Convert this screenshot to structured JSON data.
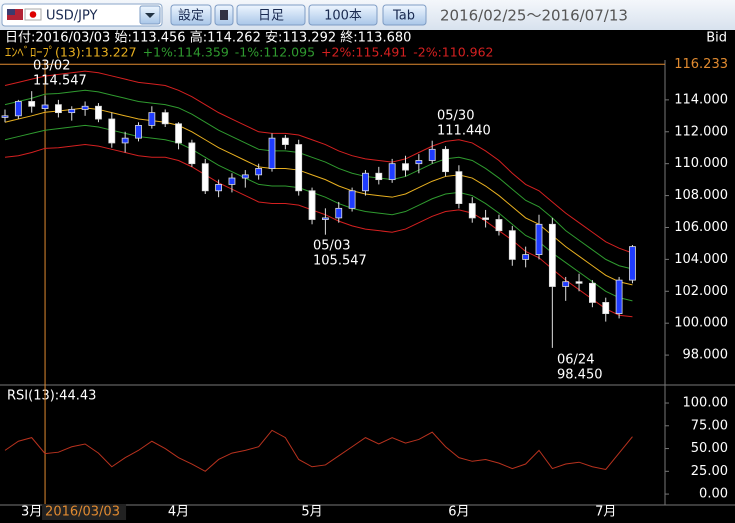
{
  "toolbar": {
    "pair": "USD/JPY",
    "buttons": [
      "設定",
      "日足",
      "100本",
      "Tab"
    ],
    "range": "2016/02/25～2016/07/13"
  },
  "chart_data": [
    {
      "type": "candlestick",
      "header": "日付:2016/03/03 始:113.456 高:114.262 安:113.292 終:113.680",
      "side_label": "Bid",
      "crosshair_label": "2016/03/03",
      "up_color": "#1f3cff",
      "down_color": "#ffffff",
      "categories": [
        null,
        null,
        "3月",
        null,
        null,
        null,
        null,
        null,
        null,
        null,
        null,
        null,
        null,
        "4月",
        null,
        null,
        null,
        null,
        null,
        null,
        null,
        null,
        null,
        "5月",
        null,
        null,
        null,
        null,
        null,
        null,
        null,
        null,
        null,
        null,
        "6月",
        null,
        null,
        null,
        null,
        null,
        null,
        null,
        null,
        null,
        null,
        "7月",
        null,
        null
      ],
      "ohlc": [
        [
          112.9,
          113.4,
          112.6,
          113.0
        ],
        [
          113.0,
          114.0,
          112.8,
          113.9
        ],
        [
          113.9,
          114.547,
          113.2,
          113.6
        ],
        [
          113.456,
          114.262,
          113.292,
          113.68
        ],
        [
          113.7,
          114.0,
          112.9,
          113.2
        ],
        [
          113.2,
          113.6,
          112.7,
          113.4
        ],
        [
          113.4,
          113.9,
          113.0,
          113.6
        ],
        [
          113.6,
          113.8,
          112.6,
          112.8
        ],
        [
          112.8,
          113.2,
          111.0,
          111.3
        ],
        [
          111.3,
          112.0,
          110.7,
          111.6
        ],
        [
          111.6,
          112.6,
          111.4,
          112.4
        ],
        [
          112.4,
          113.6,
          112.2,
          113.2
        ],
        [
          113.2,
          113.4,
          112.3,
          112.5
        ],
        [
          112.5,
          112.6,
          110.9,
          111.3
        ],
        [
          111.3,
          111.5,
          109.8,
          110.0
        ],
        [
          110.0,
          110.3,
          108.1,
          108.3
        ],
        [
          108.3,
          109.0,
          107.9,
          108.7
        ],
        [
          108.7,
          109.4,
          108.2,
          109.1
        ],
        [
          109.1,
          109.6,
          108.5,
          109.3
        ],
        [
          109.3,
          110.0,
          109.0,
          109.7
        ],
        [
          109.7,
          111.9,
          109.5,
          111.6
        ],
        [
          111.6,
          111.8,
          110.9,
          111.2
        ],
        [
          111.2,
          111.5,
          108.0,
          108.3
        ],
        [
          108.3,
          108.5,
          106.2,
          106.5
        ],
        [
          106.5,
          107.2,
          105.547,
          106.6
        ],
        [
          106.6,
          107.6,
          106.3,
          107.2
        ],
        [
          107.2,
          108.5,
          107.0,
          108.3
        ],
        [
          108.3,
          109.6,
          108.0,
          109.4
        ],
        [
          109.4,
          109.8,
          108.7,
          109.0
        ],
        [
          109.0,
          110.3,
          108.8,
          110.0
        ],
        [
          110.0,
          110.5,
          109.2,
          109.6
        ],
        [
          110.0,
          110.6,
          109.4,
          110.2
        ],
        [
          110.2,
          111.44,
          110.0,
          110.9
        ],
        [
          110.9,
          111.1,
          109.2,
          109.5
        ],
        [
          109.5,
          109.9,
          107.2,
          107.5
        ],
        [
          107.5,
          107.9,
          106.3,
          106.6
        ],
        [
          106.6,
          107.1,
          106.0,
          106.5
        ],
        [
          106.5,
          106.8,
          105.5,
          105.8
        ],
        [
          105.8,
          106.1,
          103.6,
          104.0
        ],
        [
          104.0,
          104.8,
          103.5,
          104.3
        ],
        [
          104.3,
          106.8,
          104.0,
          106.2
        ],
        [
          106.2,
          106.6,
          98.45,
          102.3
        ],
        [
          102.3,
          102.9,
          101.4,
          102.6
        ],
        [
          102.6,
          103.1,
          102.0,
          102.5
        ],
        [
          102.5,
          102.7,
          101.0,
          101.3
        ],
        [
          101.3,
          101.6,
          100.1,
          100.6
        ],
        [
          100.6,
          102.9,
          100.3,
          102.7
        ],
        [
          102.7,
          104.9,
          102.5,
          104.8
        ]
      ],
      "series": [
        {
          "name": "ｴﾝﾍﾞﾛｰﾌﾟ(13):113.227",
          "color": "#e8b020",
          "values": [
            112.6,
            112.8,
            113.0,
            113.227,
            113.3,
            113.4,
            113.5,
            113.4,
            113.2,
            113.0,
            112.8,
            112.7,
            112.6,
            112.4,
            112.0,
            111.5,
            111.0,
            110.6,
            110.2,
            109.8,
            109.7,
            109.7,
            109.6,
            109.3,
            109.0,
            108.6,
            108.3,
            108.1,
            108.0,
            107.9,
            108.1,
            108.5,
            108.9,
            109.2,
            109.3,
            109.1,
            108.6,
            108.0,
            107.3,
            106.6,
            106.2,
            105.5,
            104.8,
            104.2,
            103.6,
            103.0,
            102.6,
            102.4
          ]
        },
        {
          "name": "+1%:114.359",
          "color": "#2f9a2f",
          "values": [
            113.7,
            113.9,
            114.1,
            114.359,
            114.4,
            114.5,
            114.6,
            114.5,
            114.3,
            114.1,
            113.9,
            113.8,
            113.7,
            113.5,
            113.1,
            112.6,
            112.1,
            111.7,
            111.3,
            110.9,
            110.8,
            110.8,
            110.7,
            110.4,
            110.1,
            109.7,
            109.4,
            109.2,
            109.1,
            109.0,
            109.2,
            109.6,
            110.0,
            110.3,
            110.4,
            110.2,
            109.7,
            109.1,
            108.4,
            107.7,
            107.3,
            106.6,
            105.8,
            105.2,
            104.6,
            104.0,
            103.6,
            103.4
          ]
        },
        {
          "name": "-1%:112.095",
          "color": "#2f9a2f",
          "values": [
            111.5,
            111.7,
            111.9,
            112.095,
            112.2,
            112.3,
            112.4,
            112.3,
            112.1,
            111.9,
            111.7,
            111.6,
            111.5,
            111.3,
            110.9,
            110.4,
            109.9,
            109.5,
            109.1,
            108.7,
            108.6,
            108.6,
            108.5,
            108.2,
            107.9,
            107.5,
            107.2,
            107.0,
            106.9,
            106.8,
            107.0,
            107.4,
            107.8,
            108.1,
            108.2,
            108.0,
            107.5,
            106.9,
            106.2,
            105.5,
            105.1,
            104.4,
            103.8,
            103.2,
            102.6,
            102.0,
            101.6,
            101.4
          ]
        },
        {
          "name": "+2%:115.491",
          "color": "#d42020",
          "values": [
            114.9,
            115.1,
            115.3,
            115.491,
            115.6,
            115.7,
            115.8,
            115.7,
            115.5,
            115.3,
            115.1,
            115.0,
            114.9,
            114.6,
            114.2,
            113.7,
            113.2,
            112.8,
            112.4,
            112.0,
            111.9,
            111.9,
            111.8,
            111.5,
            111.2,
            110.8,
            110.5,
            110.3,
            110.2,
            110.1,
            110.3,
            110.7,
            111.1,
            111.4,
            111.5,
            111.3,
            110.8,
            110.2,
            109.4,
            108.7,
            108.3,
            107.6,
            106.9,
            106.3,
            105.7,
            105.1,
            104.7,
            104.4
          ]
        },
        {
          "name": "-2%:110.962",
          "color": "#d42020",
          "values": [
            110.4,
            110.5,
            110.7,
            110.962,
            111.0,
            111.1,
            111.2,
            111.1,
            110.9,
            110.7,
            110.5,
            110.4,
            110.4,
            110.2,
            109.8,
            109.3,
            108.8,
            108.4,
            108.0,
            107.6,
            107.5,
            107.5,
            107.4,
            107.1,
            106.8,
            106.4,
            106.1,
            105.9,
            105.8,
            105.7,
            105.9,
            106.3,
            106.7,
            107.0,
            107.1,
            106.9,
            106.4,
            105.8,
            105.2,
            104.5,
            104.1,
            103.4,
            102.7,
            102.1,
            101.5,
            100.9,
            100.5,
            100.4
          ]
        }
      ],
      "annotations": [
        {
          "date": "03/02",
          "price": "114.547"
        },
        {
          "date": "05/03",
          "price": "105.547"
        },
        {
          "date": "05/30",
          "price": "111.440"
        },
        {
          "date": "06/24",
          "price": "98.450"
        }
      ],
      "marker_line": 116.233,
      "ylim": [
        96.25,
        116.5
      ],
      "yticks": [
        {
          "value": 98,
          "label": "98.000"
        },
        {
          "value": 100,
          "label": "100.000"
        },
        {
          "value": 102,
          "label": "102.000"
        },
        {
          "value": 104,
          "label": "104.000"
        },
        {
          "value": 106,
          "label": "106.000"
        },
        {
          "value": 108,
          "label": "108.000"
        },
        {
          "value": 110,
          "label": "110.000"
        },
        {
          "value": 112,
          "label": "112.000"
        },
        {
          "value": 114,
          "label": "114.000"
        }
      ]
    },
    {
      "type": "line",
      "title": "RSI(13):44.43",
      "color": "#b8321e",
      "values": [
        48,
        58,
        62,
        44.43,
        46,
        52,
        55,
        45,
        30,
        40,
        48,
        58,
        50,
        40,
        33,
        25,
        38,
        45,
        48,
        52,
        70,
        62,
        38,
        30,
        32,
        42,
        52,
        62,
        55,
        62,
        56,
        60,
        68,
        52,
        40,
        36,
        38,
        34,
        28,
        33,
        48,
        28,
        33,
        35,
        30,
        27,
        45,
        63
      ],
      "ylim": [
        -12,
        116.5
      ],
      "yticks": [
        {
          "value": 0,
          "label": "0.00"
        },
        {
          "value": 25,
          "label": "25.00"
        },
        {
          "value": 50,
          "label": "50.00"
        },
        {
          "value": 75,
          "label": "75.00"
        },
        {
          "value": 100,
          "label": "100.00"
        }
      ]
    }
  ]
}
